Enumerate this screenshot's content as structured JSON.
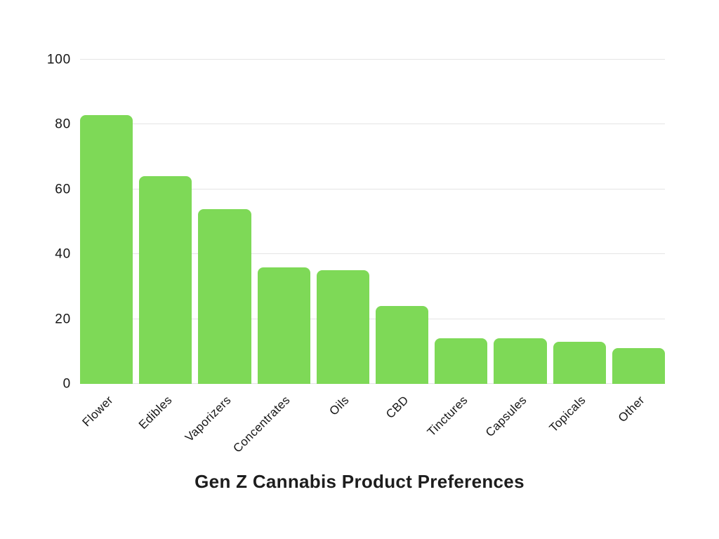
{
  "page": {
    "background": "#ffffff"
  },
  "chart_data": {
    "type": "bar",
    "title": "Gen Z Cannabis Product Preferences",
    "categories": [
      "Flower",
      "Edibles",
      "Vaporizers",
      "Concentrates",
      "Oils",
      "CBD",
      "Tinctures",
      "Capsules",
      "Topicals",
      "Other"
    ],
    "values": [
      83,
      64,
      54,
      36,
      35,
      24,
      14,
      14,
      13,
      11
    ],
    "xlabel": "",
    "ylabel": "",
    "ylim": [
      0,
      100
    ],
    "yticks": [
      0,
      20,
      40,
      60,
      80,
      100
    ],
    "grid": true,
    "legend": false,
    "x_tick_rotation_deg": 45,
    "colors": {
      "bar": "#7ED957",
      "gridline": "#e4e4e4",
      "tick_text": "#161616",
      "title_text": "#1d1d1d"
    }
  }
}
